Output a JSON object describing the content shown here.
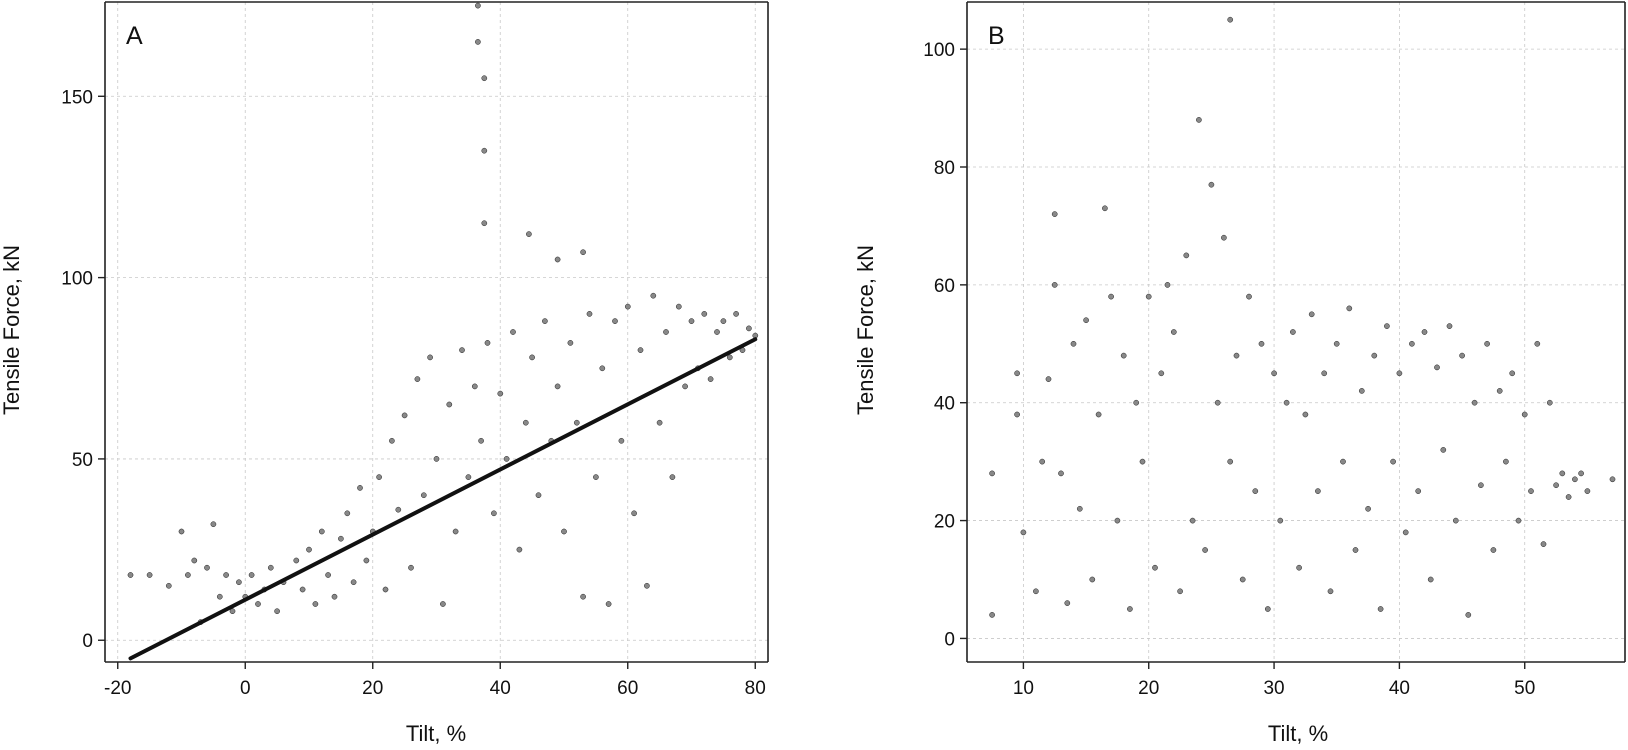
{
  "chart_data": [
    {
      "type": "scatter",
      "panel": "A",
      "xlabel": "Tilt, %",
      "ylabel": "Tensile Force, kN",
      "xlim": [
        -22,
        82
      ],
      "ylim": [
        -6,
        176
      ],
      "xticks": [
        -20,
        0,
        20,
        40,
        60,
        80
      ],
      "yticks": [
        0,
        50,
        100,
        150
      ],
      "grid": true,
      "trend_line": {
        "x": [
          -18,
          80
        ],
        "y": [
          -5,
          83
        ]
      },
      "series": [
        {
          "points": [
            [
              -18,
              18
            ],
            [
              -15,
              18
            ],
            [
              -12,
              15
            ],
            [
              -10,
              30
            ],
            [
              -9,
              18
            ],
            [
              -8,
              22
            ],
            [
              -7,
              5
            ],
            [
              -6,
              20
            ],
            [
              -5,
              32
            ],
            [
              -4,
              12
            ],
            [
              -3,
              18
            ],
            [
              -2,
              8
            ],
            [
              -1,
              16
            ],
            [
              0,
              12
            ],
            [
              1,
              18
            ],
            [
              2,
              10
            ],
            [
              3,
              14
            ],
            [
              4,
              20
            ],
            [
              5,
              8
            ],
            [
              6,
              16
            ],
            [
              8,
              22
            ],
            [
              9,
              14
            ],
            [
              10,
              25
            ],
            [
              11,
              10
            ],
            [
              12,
              30
            ],
            [
              13,
              18
            ],
            [
              14,
              12
            ],
            [
              15,
              28
            ],
            [
              16,
              35
            ],
            [
              17,
              16
            ],
            [
              18,
              42
            ],
            [
              19,
              22
            ],
            [
              20,
              30
            ],
            [
              21,
              45
            ],
            [
              22,
              14
            ],
            [
              23,
              55
            ],
            [
              24,
              36
            ],
            [
              25,
              62
            ],
            [
              26,
              20
            ],
            [
              27,
              72
            ],
            [
              28,
              40
            ],
            [
              29,
              78
            ],
            [
              30,
              50
            ],
            [
              31,
              10
            ],
            [
              32,
              65
            ],
            [
              33,
              30
            ],
            [
              34,
              80
            ],
            [
              35,
              45
            ],
            [
              36,
              70
            ],
            [
              37,
              55
            ],
            [
              38,
              82
            ],
            [
              39,
              35
            ],
            [
              40,
              68
            ],
            [
              41,
              50
            ],
            [
              42,
              85
            ],
            [
              43,
              25
            ],
            [
              44,
              60
            ],
            [
              44.5,
              112
            ],
            [
              45,
              78
            ],
            [
              46,
              40
            ],
            [
              47,
              88
            ],
            [
              48,
              55
            ],
            [
              49,
              105
            ],
            [
              49,
              70
            ],
            [
              50,
              30
            ],
            [
              51,
              82
            ],
            [
              52,
              60
            ],
            [
              53,
              107
            ],
            [
              53,
              12
            ],
            [
              54,
              90
            ],
            [
              55,
              45
            ],
            [
              56,
              75
            ],
            [
              57,
              10
            ],
            [
              58,
              88
            ],
            [
              59,
              55
            ],
            [
              60,
              92
            ],
            [
              61,
              35
            ],
            [
              62,
              80
            ],
            [
              63,
              15
            ],
            [
              64,
              95
            ],
            [
              65,
              60
            ],
            [
              66,
              85
            ],
            [
              67,
              45
            ],
            [
              68,
              92
            ],
            [
              69,
              70
            ],
            [
              70,
              88
            ],
            [
              71,
              75
            ],
            [
              72,
              90
            ],
            [
              73,
              72
            ],
            [
              74,
              85
            ],
            [
              75,
              88
            ],
            [
              76,
              78
            ],
            [
              77,
              90
            ],
            [
              78,
              80
            ],
            [
              79,
              86
            ],
            [
              80,
              84
            ],
            [
              36.5,
              175
            ],
            [
              36.5,
              165
            ],
            [
              37.5,
              155
            ],
            [
              37.5,
              135
            ],
            [
              37.5,
              115
            ]
          ]
        }
      ]
    },
    {
      "type": "scatter",
      "panel": "B",
      "xlabel": "Tilt, %",
      "ylabel": "Tensile Force, kN",
      "xlim": [
        5.5,
        58
      ],
      "ylim": [
        -4,
        108
      ],
      "xticks": [
        10,
        20,
        30,
        40,
        50
      ],
      "yticks": [
        0,
        20,
        40,
        60,
        80,
        100
      ],
      "grid": true,
      "series": [
        {
          "points": [
            [
              7.5,
              28
            ],
            [
              7.5,
              4
            ],
            [
              9.5,
              45
            ],
            [
              9.5,
              38
            ],
            [
              10,
              18
            ],
            [
              11,
              8
            ],
            [
              11.5,
              30
            ],
            [
              12,
              44
            ],
            [
              12.5,
              72
            ],
            [
              12.5,
              60
            ],
            [
              13,
              28
            ],
            [
              13.5,
              6
            ],
            [
              14,
              50
            ],
            [
              14.5,
              22
            ],
            [
              15,
              54
            ],
            [
              15.5,
              10
            ],
            [
              16,
              38
            ],
            [
              16.5,
              73
            ],
            [
              17,
              58
            ],
            [
              17.5,
              20
            ],
            [
              18,
              48
            ],
            [
              18.5,
              5
            ],
            [
              19,
              40
            ],
            [
              19.5,
              30
            ],
            [
              20,
              58
            ],
            [
              20.5,
              12
            ],
            [
              21,
              45
            ],
            [
              21.5,
              60
            ],
            [
              22,
              52
            ],
            [
              22.5,
              8
            ],
            [
              23,
              65
            ],
            [
              23.5,
              20
            ],
            [
              24,
              88
            ],
            [
              24.5,
              15
            ],
            [
              25,
              77
            ],
            [
              25.5,
              40
            ],
            [
              26,
              68
            ],
            [
              26.5,
              105
            ],
            [
              26.5,
              30
            ],
            [
              27,
              48
            ],
            [
              27.5,
              10
            ],
            [
              28,
              58
            ],
            [
              28.5,
              25
            ],
            [
              29,
              50
            ],
            [
              29.5,
              5
            ],
            [
              30,
              45
            ],
            [
              30.5,
              20
            ],
            [
              31,
              40
            ],
            [
              31.5,
              52
            ],
            [
              32,
              12
            ],
            [
              32.5,
              38
            ],
            [
              33,
              55
            ],
            [
              33.5,
              25
            ],
            [
              34,
              45
            ],
            [
              34.5,
              8
            ],
            [
              35,
              50
            ],
            [
              35.5,
              30
            ],
            [
              36,
              56
            ],
            [
              36.5,
              15
            ],
            [
              37,
              42
            ],
            [
              37.5,
              22
            ],
            [
              38,
              48
            ],
            [
              38.5,
              5
            ],
            [
              39,
              53
            ],
            [
              39.5,
              30
            ],
            [
              40,
              45
            ],
            [
              40.5,
              18
            ],
            [
              41,
              50
            ],
            [
              41.5,
              25
            ],
            [
              42,
              52
            ],
            [
              42.5,
              10
            ],
            [
              43,
              46
            ],
            [
              43.5,
              32
            ],
            [
              44,
              53
            ],
            [
              44.5,
              20
            ],
            [
              45,
              48
            ],
            [
              45.5,
              4
            ],
            [
              46,
              40
            ],
            [
              46.5,
              26
            ],
            [
              47,
              50
            ],
            [
              47.5,
              15
            ],
            [
              48,
              42
            ],
            [
              48.5,
              30
            ],
            [
              49,
              45
            ],
            [
              49.5,
              20
            ],
            [
              50,
              38
            ],
            [
              50.5,
              25
            ],
            [
              51,
              50
            ],
            [
              51.5,
              16
            ],
            [
              52,
              40
            ],
            [
              52.5,
              26
            ],
            [
              53,
              28
            ],
            [
              53.5,
              24
            ],
            [
              54,
              27
            ],
            [
              54.5,
              28
            ],
            [
              55,
              25
            ],
            [
              57,
              27
            ]
          ]
        }
      ]
    }
  ],
  "panels": [
    {
      "letter": "A"
    },
    {
      "letter": "B"
    }
  ],
  "colors": {
    "points": "#888888",
    "point_edge": "#222222",
    "trend": "#111111",
    "grid": "#c8c8c8"
  }
}
